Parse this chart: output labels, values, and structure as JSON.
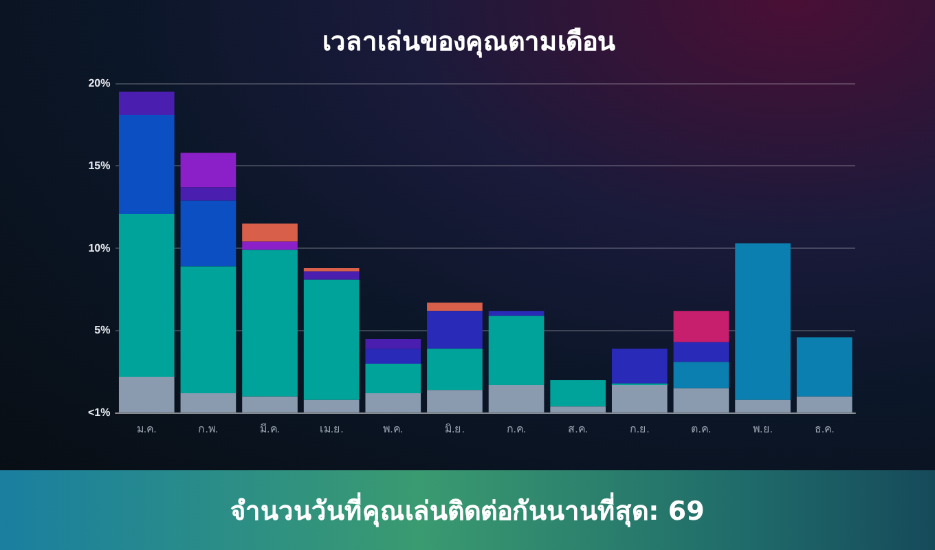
{
  "chart_data": {
    "type": "bar",
    "stacked": true,
    "title": "เวลาเล่นของคุณตามเดือน",
    "categories": [
      "ม.ค.",
      "ก.พ.",
      "มี.ค.",
      "เม.ย.",
      "พ.ค.",
      "มิ.ย.",
      "ก.ค.",
      "ส.ค.",
      "ก.ย.",
      "ต.ค.",
      "พ.ย.",
      "ธ.ค."
    ],
    "series": [
      {
        "color": "#8a9bb0",
        "values": [
          2.2,
          1.2,
          1.0,
          0.8,
          1.2,
          1.4,
          1.7,
          0.4,
          1.7,
          1.5,
          0.8,
          1.0
        ]
      },
      {
        "color": "#00a39a",
        "values": [
          9.9,
          7.7,
          8.9,
          7.3,
          1.8,
          2.5,
          4.2,
          1.6,
          0.1,
          null,
          null,
          null
        ]
      },
      {
        "color": "#0a7fb0",
        "values": [
          null,
          null,
          null,
          null,
          null,
          null,
          null,
          null,
          null,
          1.6,
          9.5,
          3.6
        ]
      },
      {
        "color": "#0b4fc2",
        "values": [
          6.0,
          4.0,
          null,
          null,
          null,
          null,
          null,
          null,
          null,
          null,
          null,
          null
        ]
      },
      {
        "color": "#2a2ab8",
        "values": [
          null,
          null,
          null,
          null,
          0.9,
          2.3,
          0.3,
          null,
          2.1,
          1.2,
          null,
          null
        ]
      },
      {
        "color": "#4a1fb0",
        "values": [
          1.4,
          0.8,
          null,
          0.5,
          0.6,
          null,
          null,
          null,
          null,
          null,
          null,
          null
        ]
      },
      {
        "color": "#8b1fc8",
        "values": [
          null,
          2.1,
          0.5,
          null,
          null,
          null,
          null,
          null,
          null,
          null,
          null,
          null
        ]
      },
      {
        "color": "#d8604a",
        "values": [
          null,
          null,
          1.1,
          0.2,
          null,
          0.5,
          null,
          null,
          null,
          null,
          null,
          null
        ]
      },
      {
        "color": "#c81e6e",
        "values": [
          null,
          null,
          null,
          null,
          null,
          null,
          null,
          null,
          null,
          1.9,
          null,
          null
        ]
      }
    ],
    "ylim": [
      0,
      20
    ],
    "yticks": [
      {
        "value": 0,
        "label": "<1%"
      },
      {
        "value": 5,
        "label": "5%"
      },
      {
        "value": 10,
        "label": "10%"
      },
      {
        "value": 15,
        "label": "15%"
      },
      {
        "value": 20,
        "label": "20%"
      }
    ],
    "grid": "y",
    "legend": false,
    "annotations": [
      "จำนวนวันที่คุณเล่นติดต่อกันนานที่สุด: 69"
    ]
  }
}
